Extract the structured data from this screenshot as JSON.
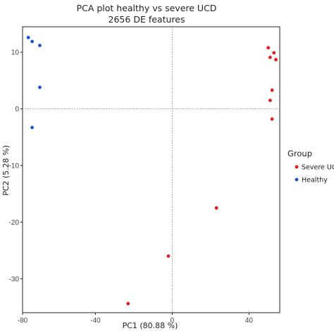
{
  "chart_data": {
    "type": "scatter",
    "title": "PCA plot healthy vs severe UCD",
    "subtitle": "2656 DE features",
    "xlabel": "PC1 (80.88 %)",
    "ylabel": "PC2 (5.28 %)",
    "xlim": [
      -78,
      56
    ],
    "ylim": [
      -36,
      14.5
    ],
    "xticks": [
      -80,
      -40,
      0,
      40
    ],
    "yticks": [
      10,
      0,
      -10,
      -20,
      -30
    ],
    "grid": false,
    "reference_lines": [
      {
        "axis": "x",
        "value": 0
      },
      {
        "axis": "y",
        "value": 0
      }
    ],
    "legend": {
      "title": "Group",
      "position": "right"
    },
    "series": [
      {
        "name": "Severe UCD",
        "color": "#e41a1c",
        "points": [
          {
            "x": 50,
            "y": 10.8
          },
          {
            "x": 53,
            "y": 9.9
          },
          {
            "x": 51,
            "y": 9.1
          },
          {
            "x": 54,
            "y": 8.7
          },
          {
            "x": 52,
            "y": 3.3
          },
          {
            "x": 51,
            "y": 1.5
          },
          {
            "x": 52,
            "y": -1.8
          },
          {
            "x": 23,
            "y": -17.5
          },
          {
            "x": -2,
            "y": -26.0
          },
          {
            "x": -23,
            "y": -34.4
          }
        ]
      },
      {
        "name": "Healthy",
        "color": "#1f4fd1",
        "points": [
          {
            "x": -75,
            "y": 12.6
          },
          {
            "x": -73,
            "y": 11.9
          },
          {
            "x": -69,
            "y": 11.2
          },
          {
            "x": -69,
            "y": 3.8
          },
          {
            "x": -73,
            "y": -3.3
          }
        ]
      }
    ]
  }
}
